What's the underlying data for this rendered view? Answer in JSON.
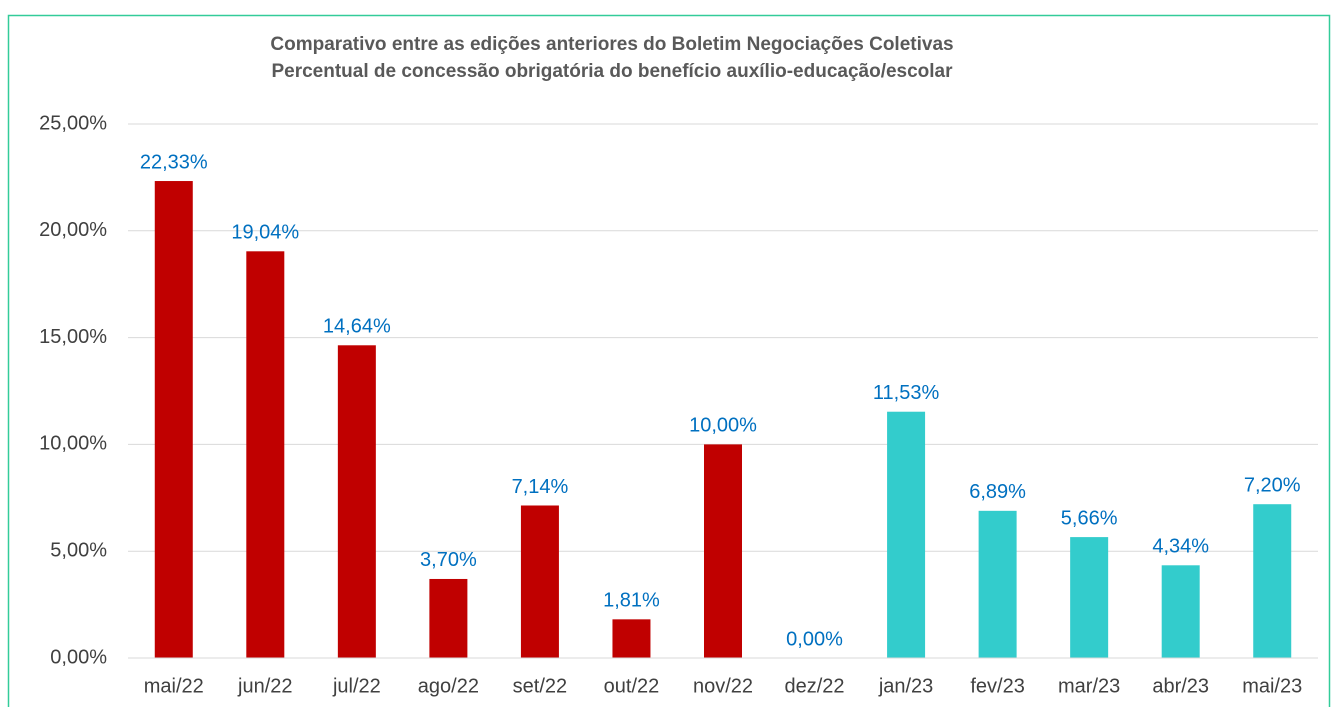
{
  "chart_data": {
    "type": "bar",
    "title": [
      "Comparativo entre as edições anteriores do Boletim Negociações Coletivas",
      "Percentual de concessão obrigatória do benefício auxílio-educação/escolar"
    ],
    "categories": [
      "mai/22",
      "jun/22",
      "jul/22",
      "ago/22",
      "set/22",
      "out/22",
      "nov/22",
      "dez/22",
      "jan/23",
      "fev/23",
      "mar/23",
      "abr/23",
      "mai/23"
    ],
    "values": [
      22.33,
      19.04,
      14.64,
      3.7,
      7.14,
      1.81,
      10.0,
      0.0,
      11.53,
      6.89,
      5.66,
      4.34,
      7.2
    ],
    "value_labels": [
      "22,33%",
      "19,04%",
      "14,64%",
      "3,70%",
      "7,14%",
      "1,81%",
      "10,00%",
      "0,00%",
      "11,53%",
      "6,89%",
      "5,66%",
      "4,34%",
      "7,20%"
    ],
    "colors": [
      "#c00000",
      "#c00000",
      "#c00000",
      "#c00000",
      "#c00000",
      "#c00000",
      "#c00000",
      "#c00000",
      "#33cccc",
      "#33cccc",
      "#33cccc",
      "#33cccc",
      "#33cccc"
    ],
    "ylim": [
      0,
      25
    ],
    "yticks": [
      {
        "value": 0,
        "label": "0,00%"
      },
      {
        "value": 5,
        "label": "5,00%"
      },
      {
        "value": 10,
        "label": "10,00%"
      },
      {
        "value": 15,
        "label": "15,00%"
      },
      {
        "value": 20,
        "label": "20,00%"
      },
      {
        "value": 25,
        "label": "25,00%"
      }
    ],
    "grid": true
  }
}
